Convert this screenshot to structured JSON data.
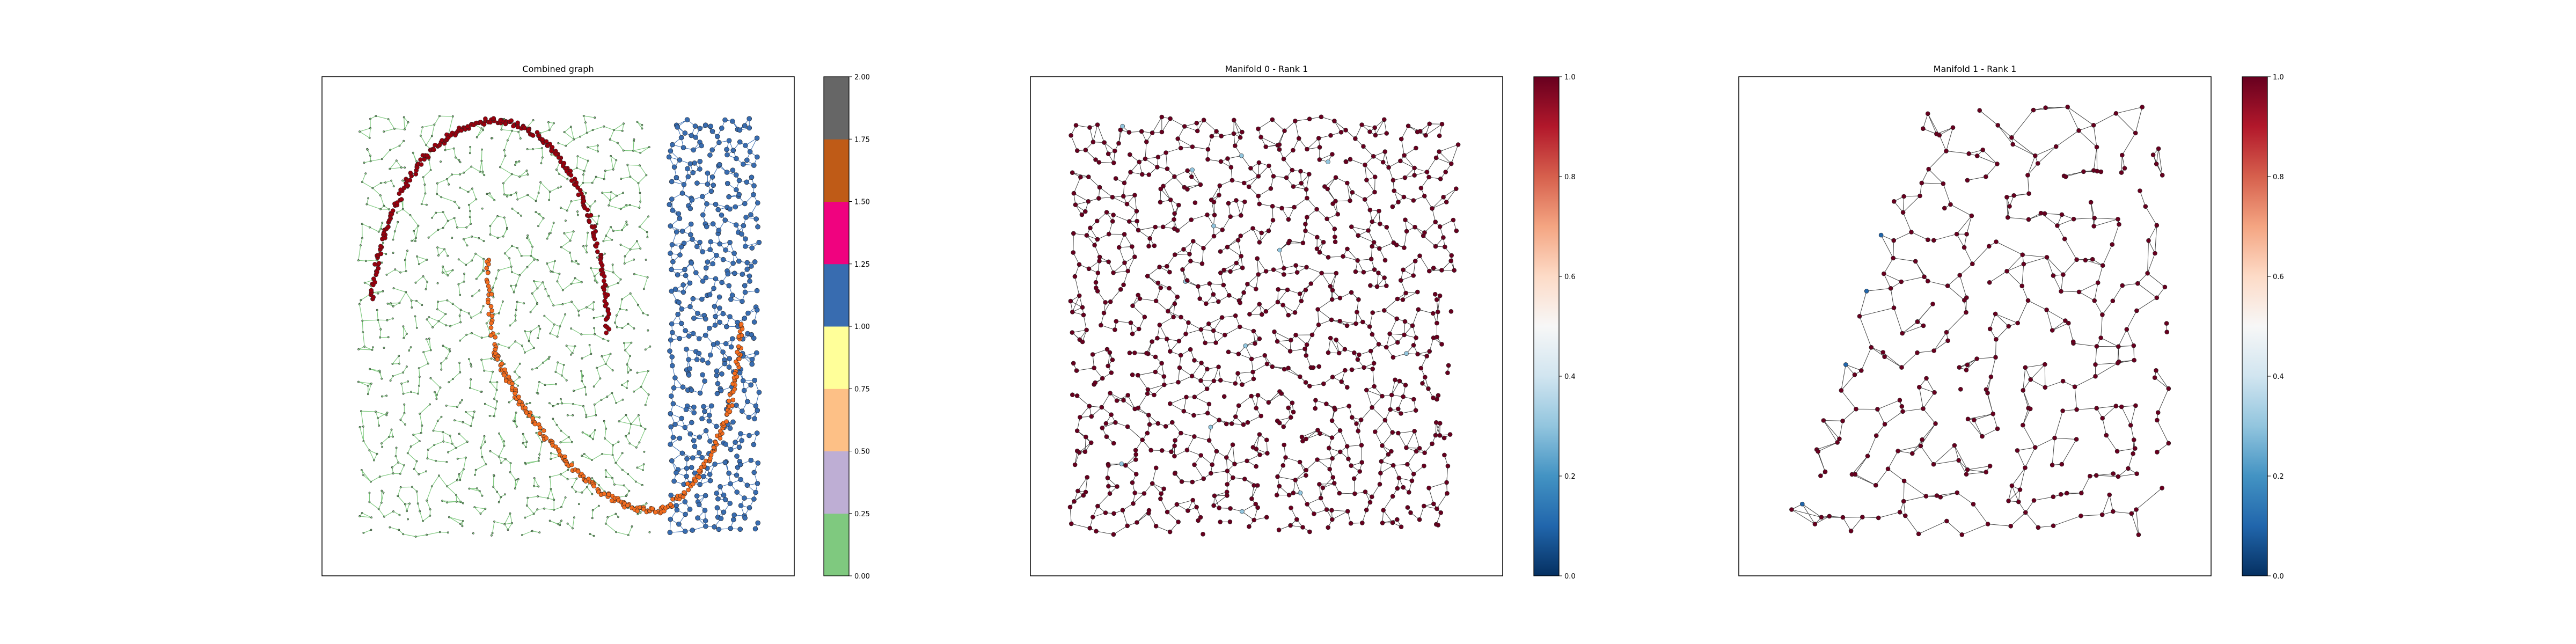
{
  "chart_data": [
    {
      "type": "scatter",
      "title": "Combined graph",
      "xlabel": "",
      "ylabel": "",
      "description": "Graph of nodes and edges colored by manifold label (0 green rectangle, 1 blue rectangle, 0.5 orange curve, 0.25 purple, 2 gray)",
      "colorbar": {
        "cmap": "Accent",
        "range": [
          0,
          2
        ],
        "ticks": [
          "0.00",
          "0.25",
          "0.50",
          "0.75",
          "1.00",
          "1.25",
          "1.50",
          "1.75",
          "2.00"
        ],
        "colors": [
          "#7fc97f",
          "#beaed4",
          "#fdc086",
          "#ffff99",
          "#386cb0",
          "#f0027f",
          "#bf5b17",
          "#666666"
        ]
      },
      "series": [
        {
          "name": "manifold 0 (green region)",
          "value": 0.0,
          "color": "#7fc97f",
          "x_range": [
            0.0,
            1.0
          ],
          "y_range": [
            0.0,
            1.0
          ]
        },
        {
          "name": "manifold 1 (blue region)",
          "value": 1.0,
          "color": "#386cb0",
          "x_range": [
            0.0,
            1.0
          ],
          "y_range": [
            0.0,
            1.0
          ]
        },
        {
          "name": "upper arc (dark red)",
          "color": "#8b0000"
        },
        {
          "name": "lower arc (orange)",
          "color": "#f46d1f"
        }
      ]
    },
    {
      "type": "scatter",
      "title": "Manifold 0 - Rank 1",
      "xlabel": "",
      "ylabel": "",
      "colorbar": {
        "cmap": "RdBu_r",
        "range": [
          0,
          1
        ],
        "ticks": [
          "0.0",
          "0.2",
          "0.4",
          "0.6",
          "0.8",
          "1.0"
        ]
      },
      "description": "Nearly all nodes at value 1.0 (dark red) with a few light-blue nodes"
    },
    {
      "type": "scatter",
      "title": "Manifold 1 - Rank 1",
      "xlabel": "",
      "ylabel": "",
      "colorbar": {
        "cmap": "RdBu_r",
        "range": [
          0,
          1
        ],
        "ticks": [
          "0.0",
          "0.2",
          "0.4",
          "0.6",
          "0.8",
          "1.0"
        ]
      },
      "description": "Nearly all nodes at value 1.0 (dark red) with a few blue nodes on the left edge"
    }
  ]
}
